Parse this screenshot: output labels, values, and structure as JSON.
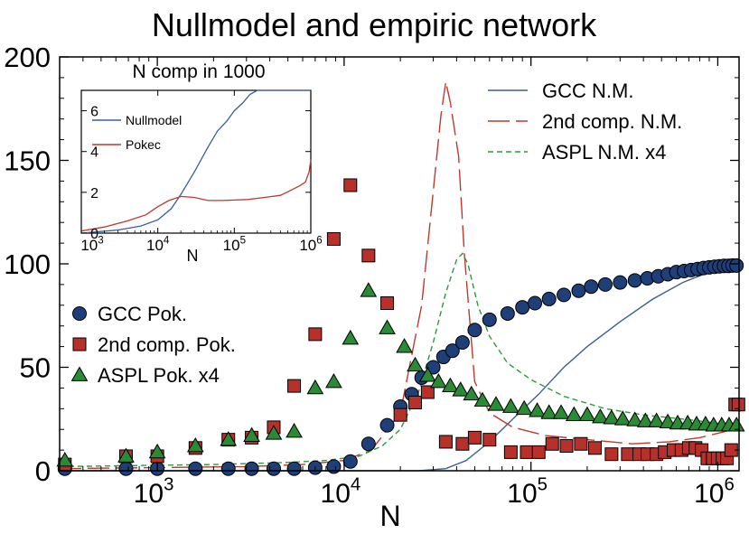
{
  "chart_data": [
    {
      "type": "scatter",
      "title": "Nullmodel and empiric network",
      "xlabel": "N",
      "ylabel": "",
      "xscale": "log",
      "xlim": [
        300,
        1300000
      ],
      "ylim": [
        0,
        200
      ],
      "yticks": [
        0,
        50,
        100,
        150,
        200
      ],
      "xticks": [
        1000,
        10000,
        100000,
        1000000
      ],
      "xtick_labels": [
        {
          "base": "10",
          "exp": "3"
        },
        {
          "base": "10",
          "exp": "4"
        },
        {
          "base": "10",
          "exp": "5"
        },
        {
          "base": "10",
          "exp": "6"
        }
      ],
      "grid": false,
      "legend_left": [
        {
          "label": "GCC Pok.",
          "series": "gcc_pok"
        },
        {
          "label": "2nd comp. Pok.",
          "series": "second_pok"
        },
        {
          "label": "ASPL Pok. x4",
          "series": "aspl_pok"
        }
      ],
      "legend_right": [
        {
          "label": "GCC N.M.",
          "series": "gcc_nm"
        },
        {
          "label": "2nd comp. N.M.",
          "series": "second_nm"
        },
        {
          "label": "ASPL N.M.  x4",
          "series": "aspl_nm"
        }
      ],
      "series": [
        {
          "id": "gcc_pok",
          "kind": "marker",
          "marker": "circle",
          "color": "#1f3f78",
          "x": [
            320,
            680,
            1000,
            1600,
            2400,
            3200,
            4200,
            5400,
            7000,
            8800,
            10800,
            13500,
            17000,
            20000,
            23000,
            26000,
            30000,
            34000,
            38000,
            43000,
            50000,
            60000,
            75000,
            90000,
            105000,
            125000,
            150000,
            180000,
            210000,
            250000,
            300000,
            360000,
            420000,
            480000,
            540000,
            600000,
            660000,
            720000,
            780000,
            840000,
            900000,
            960000,
            1020000,
            1080000,
            1140000,
            1200000,
            1260000
          ],
          "y": [
            1,
            1,
            1,
            1,
            1,
            1,
            1,
            1,
            1.5,
            2,
            4.5,
            13,
            22,
            31,
            37,
            45,
            50,
            55,
            58,
            62,
            68,
            73,
            76,
            79,
            81,
            83,
            85,
            87,
            89,
            90,
            91,
            92,
            93,
            94,
            95,
            96,
            96.5,
            97,
            97.5,
            98,
            98.3,
            98.6,
            98.8,
            99,
            99,
            99.2,
            99.2
          ]
        },
        {
          "id": "second_pok",
          "kind": "marker",
          "marker": "square",
          "color": "#b8302a",
          "x": [
            320,
            680,
            1000,
            1600,
            2400,
            3200,
            4200,
            5400,
            7000,
            8800,
            10800,
            13500,
            17000,
            20000,
            24000,
            28000,
            35000,
            43000,
            50000,
            60000,
            78000,
            95000,
            110000,
            130000,
            155000,
            185000,
            220000,
            270000,
            330000,
            380000,
            420000,
            470000,
            520000,
            580000,
            640000,
            700000,
            760000,
            820000,
            880000,
            940000,
            1000000,
            1060000,
            1120000,
            1180000,
            1240000,
            1290000
          ],
          "y": [
            3,
            7,
            7,
            11,
            15,
            16,
            21,
            41,
            66,
            112,
            138,
            104,
            81,
            27,
            33,
            38,
            14,
            13,
            16,
            15,
            9,
            9,
            9,
            13,
            12,
            13,
            11,
            8,
            8,
            8,
            8,
            8,
            9,
            10,
            10,
            11,
            11,
            10,
            6,
            6,
            6,
            6,
            6,
            10,
            32,
            32
          ]
        },
        {
          "id": "aspl_pok",
          "kind": "marker",
          "marker": "triangle",
          "color": "#2a8a35",
          "x": [
            320,
            680,
            1000,
            1600,
            2400,
            3200,
            4200,
            5400,
            7000,
            8800,
            10800,
            13500,
            17000,
            21000,
            24000,
            28000,
            32000,
            37000,
            42000,
            48000,
            55000,
            65000,
            78000,
            92000,
            108000,
            125000,
            145000,
            170000,
            200000,
            235000,
            270000,
            310000,
            360000,
            410000,
            470000,
            540000,
            610000,
            690000,
            770000,
            860000,
            950000,
            1050000,
            1150000,
            1260000
          ],
          "y": [
            5,
            7,
            9,
            12,
            15,
            17,
            18,
            19,
            40,
            43,
            64,
            87,
            69,
            60,
            51,
            46,
            43,
            41,
            39,
            37,
            34,
            32,
            31,
            30,
            29,
            28,
            28,
            27,
            27,
            26,
            25.5,
            25,
            24.5,
            24,
            24,
            23.5,
            23,
            23,
            22.5,
            22.5,
            22,
            22,
            22,
            22
          ]
        },
        {
          "id": "gcc_nm",
          "kind": "line",
          "dash": "solid",
          "color": "#3a5f9a",
          "x": [
            300,
            5000,
            15000,
            25000,
            35000,
            45000,
            60000,
            80000,
            110000,
            150000,
            200000,
            300000,
            450000,
            650000,
            900000,
            1300000
          ],
          "y": [
            0,
            0,
            0,
            0,
            1,
            5,
            14,
            25,
            37,
            50,
            60,
            72,
            83,
            91,
            96,
            100
          ]
        },
        {
          "id": "second_nm",
          "kind": "line",
          "dash": "long",
          "color": "#c0392b",
          "x": [
            300,
            3000,
            6000,
            10000,
            14000,
            20000,
            26000,
            30000,
            33000,
            35000,
            37000,
            41000,
            44000,
            50000,
            60000,
            80000,
            120000,
            200000,
            350000,
            550000,
            800000,
            1100000,
            1300000
          ],
          "y": [
            1,
            2,
            3,
            5,
            10,
            28,
            80,
            135,
            172,
            188,
            178,
            152,
            105,
            43,
            28,
            21,
            17,
            15,
            13,
            14,
            16,
            19,
            21
          ]
        },
        {
          "id": "aspl_nm",
          "kind": "line",
          "dash": "short",
          "color": "#2e9a3e",
          "x": [
            300,
            2000,
            5000,
            8000,
            12000,
            16000,
            20000,
            25000,
            30000,
            35000,
            40000,
            43000,
            46000,
            52000,
            60000,
            75000,
            100000,
            150000,
            250000,
            400000,
            650000,
            1000000,
            1300000
          ],
          "y": [
            2,
            3,
            4,
            5,
            7,
            12,
            20,
            38,
            62,
            86,
            102,
            105,
            100,
            80,
            65,
            52,
            44,
            36,
            30,
            27,
            25,
            23,
            22
          ]
        }
      ]
    },
    {
      "type": "line",
      "title": "N comp in 1000",
      "xlabel": "N",
      "ylabel": "",
      "xscale": "log",
      "xlim": [
        1000,
        1000000
      ],
      "ylim": [
        0,
        7
      ],
      "yticks": [
        0,
        2,
        4,
        6
      ],
      "xticks": [
        1000,
        10000,
        100000,
        1000000
      ],
      "xtick_labels": [
        {
          "base": "10",
          "exp": "3"
        },
        {
          "base": "10",
          "exp": "4"
        },
        {
          "base": "10",
          "exp": "5"
        },
        {
          "base": "10",
          "exp": "6"
        }
      ],
      "series": [
        {
          "name": "Nullmodel",
          "color": "#3a5f9a",
          "x": [
            1000,
            3000,
            6000,
            10000,
            15000,
            20000,
            30000,
            45000,
            60000,
            80000,
            100000,
            130000,
            160000,
            200000,
            300000,
            500000,
            700000,
            850000,
            1000000
          ],
          "y": [
            0,
            0.15,
            0.35,
            0.65,
            1.2,
            1.9,
            3.0,
            4.2,
            5.0,
            5.5,
            6.0,
            6.4,
            6.8,
            7.0,
            7.3,
            7.6,
            7.85,
            7.85,
            7.8
          ]
        },
        {
          "name": "Pokec",
          "color": "#c0392b",
          "x": [
            1000,
            2000,
            4000,
            7000,
            10000,
            14000,
            20000,
            30000,
            45000,
            70000,
            100000,
            150000,
            250000,
            400000,
            550000,
            700000,
            850000,
            950000,
            1000000
          ],
          "y": [
            0.1,
            0.3,
            0.6,
            0.9,
            1.3,
            1.6,
            1.8,
            1.75,
            1.6,
            1.6,
            1.62,
            1.65,
            1.75,
            1.85,
            2.1,
            2.3,
            2.5,
            3.0,
            3.6
          ]
        }
      ]
    }
  ]
}
